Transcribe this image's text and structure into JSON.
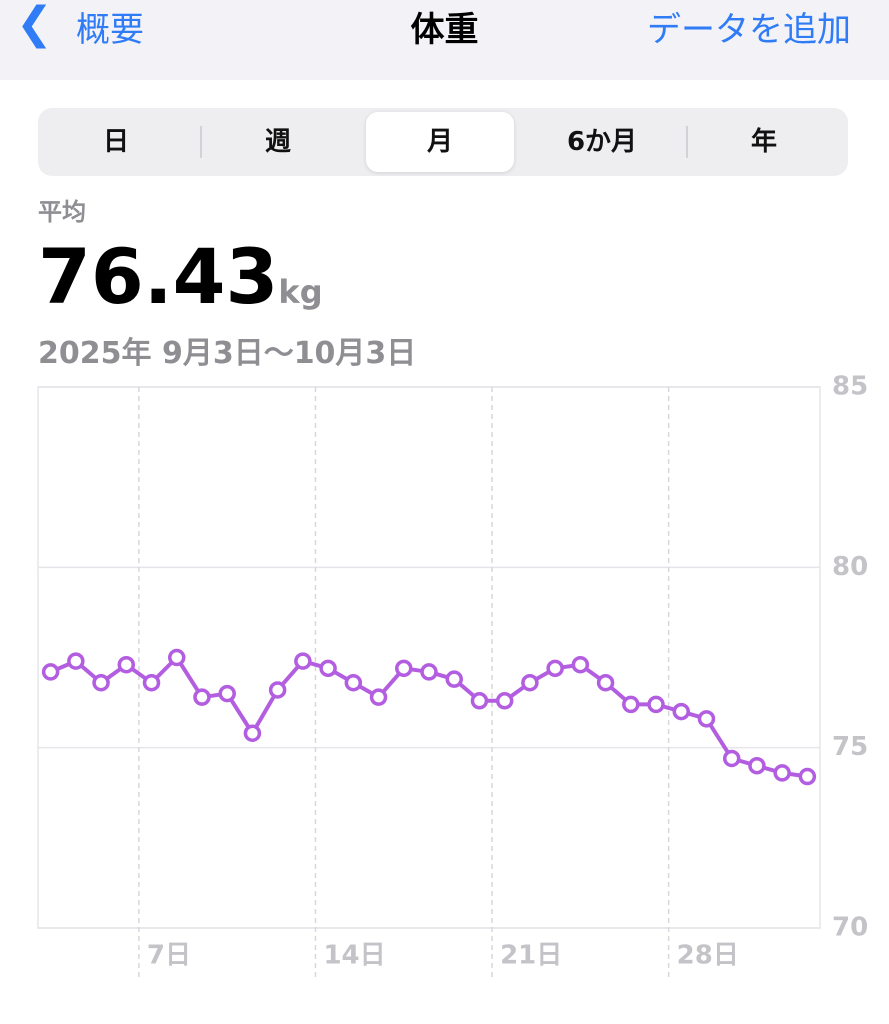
{
  "nav": {
    "back": "概要",
    "title": "体重",
    "action": "データを追加"
  },
  "segments": {
    "items": [
      "日",
      "週",
      "月",
      "6か月",
      "年"
    ],
    "selected": 2
  },
  "summary": {
    "label": "平均",
    "value": "76.43",
    "unit": "kg",
    "range": "2025年 9月3日〜10月3日"
  },
  "chart_data": {
    "type": "line",
    "x": [
      3,
      4,
      5,
      6,
      7,
      8,
      9,
      10,
      11,
      12,
      13,
      14,
      15,
      16,
      17,
      18,
      19,
      20,
      21,
      22,
      23,
      24,
      25,
      26,
      27,
      28,
      29,
      30,
      31,
      32,
      33
    ],
    "series": [
      {
        "color": "#b35ee0",
        "values": [
          77.1,
          77.4,
          76.8,
          77.3,
          76.8,
          77.5,
          76.4,
          76.5,
          75.4,
          76.6,
          77.4,
          77.2,
          76.8,
          76.4,
          77.2,
          77.1,
          76.9,
          76.3,
          76.3,
          76.8,
          77.2,
          77.3,
          76.8,
          76.2,
          76.2,
          76.0,
          75.8,
          74.7,
          74.5,
          74.3,
          74.2
        ]
      }
    ],
    "xlim": [
      2.5,
      33.5
    ],
    "xticks": [
      {
        "value": 7,
        "label": "7日"
      },
      {
        "value": 14,
        "label": "14日"
      },
      {
        "value": 21,
        "label": "21日"
      },
      {
        "value": 28,
        "label": "28日"
      }
    ],
    "ylim": [
      70,
      85
    ],
    "yticks": [
      70,
      75,
      80,
      85
    ],
    "grid": true
  }
}
